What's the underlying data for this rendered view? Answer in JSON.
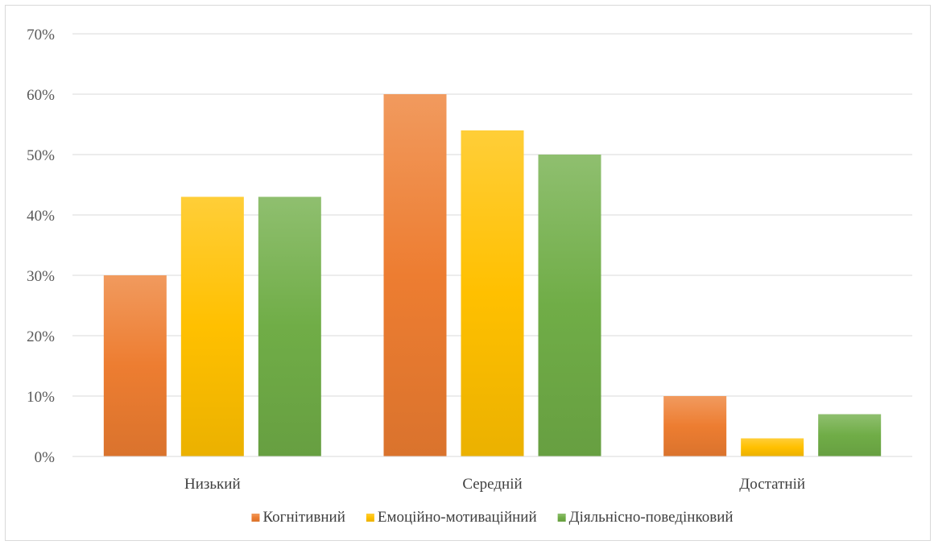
{
  "chart_data": {
    "type": "bar",
    "categories": [
      "Низький",
      "Середній",
      "Достатній"
    ],
    "series": [
      {
        "name": "Когнітивний",
        "values": [
          30,
          60,
          10
        ],
        "color": "#ED7D31"
      },
      {
        "name": "Емоційно-мотиваційний",
        "values": [
          43,
          54,
          3
        ],
        "color": "#FFC000"
      },
      {
        "name": "Діяльнісно-поведінковий",
        "values": [
          43,
          50,
          7
        ],
        "color": "#70AD47"
      }
    ],
    "ylim": [
      0,
      70
    ],
    "yticks": [
      "0%",
      "10%",
      "20%",
      "30%",
      "40%",
      "50%",
      "60%",
      "70%"
    ],
    "grid": true,
    "legend": "bottom",
    "title": "",
    "xlabel": "",
    "ylabel": ""
  }
}
